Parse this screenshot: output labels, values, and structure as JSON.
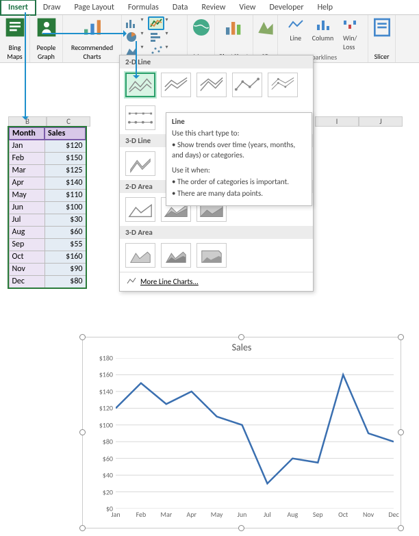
{
  "tabs": [
    "Insert",
    "Draw",
    "Page Layout",
    "Formulas",
    "Data",
    "Review",
    "View",
    "Developer",
    "Help"
  ],
  "active_tab": "Insert",
  "ribbon": {
    "bing_maps": "Bing\nMaps",
    "people_graph": "People\nGraph",
    "recommended": "Recommended\nCharts",
    "maps": "Maps",
    "pivot": "PivotChart",
    "threeD": "3D",
    "spark_line": "Line",
    "spark_col": "Column",
    "spark_wl": "Win/\nLoss",
    "sparklines": "Sparklines",
    "slicer": "Slicer"
  },
  "table": {
    "col_B": "B",
    "col_C": "C",
    "col_I": "I",
    "col_J": "J",
    "headers": {
      "month": "Month",
      "sales": "Sales"
    },
    "rows": [
      {
        "month": "Jan",
        "sales": "$120",
        "val": 120
      },
      {
        "month": "Feb",
        "sales": "$150",
        "val": 150
      },
      {
        "month": "Mar",
        "sales": "$125",
        "val": 125
      },
      {
        "month": "Apr",
        "sales": "$140",
        "val": 140
      },
      {
        "month": "May",
        "sales": "$110",
        "val": 110
      },
      {
        "month": "Jun",
        "sales": "$100",
        "val": 100
      },
      {
        "month": "Jul",
        "sales": "$30",
        "val": 30
      },
      {
        "month": "Aug",
        "sales": "$60",
        "val": 60
      },
      {
        "month": "Sep",
        "sales": "$55",
        "val": 55
      },
      {
        "month": "Oct",
        "sales": "$160",
        "val": 160
      },
      {
        "month": "Nov",
        "sales": "$90",
        "val": 90
      },
      {
        "month": "Dec",
        "sales": "$80",
        "val": 80
      }
    ]
  },
  "dropdown": {
    "sec_2d_line": "2-D Line",
    "sec_3d_line": "3-D Line",
    "sec_2d_area": "2-D Area",
    "sec_3d_area": "3-D Area",
    "more": "More Line Charts..."
  },
  "tooltip": {
    "title": "Line",
    "l1": "Use this chart type to:",
    "l2": "• Show trends over time (years, months, and days) or categories.",
    "l3": "Use it when:",
    "l4": "• The order of categories is important.",
    "l5": "• There are many data points."
  },
  "chart": {
    "title": "Sales",
    "type": "line",
    "categories": [
      "Jan",
      "Feb",
      "Mar",
      "Apr",
      "May",
      "Jun",
      "Jul",
      "Aug",
      "Sep",
      "Oct",
      "Nov",
      "Dec"
    ],
    "values": [
      120,
      150,
      125,
      140,
      110,
      100,
      30,
      60,
      55,
      160,
      90,
      80
    ],
    "ylim": [
      0,
      180
    ],
    "ytick_step": 20,
    "y_ticks": [
      "$0",
      "$20",
      "$40",
      "$60",
      "$80",
      "$100",
      "$120",
      "$140",
      "$160",
      "$180"
    ],
    "line_color": "#3a6fb0",
    "grid_color": "#d8d8d8",
    "background_color": "#ffffff",
    "title_fontsize": 14,
    "label_fontsize": 10
  }
}
